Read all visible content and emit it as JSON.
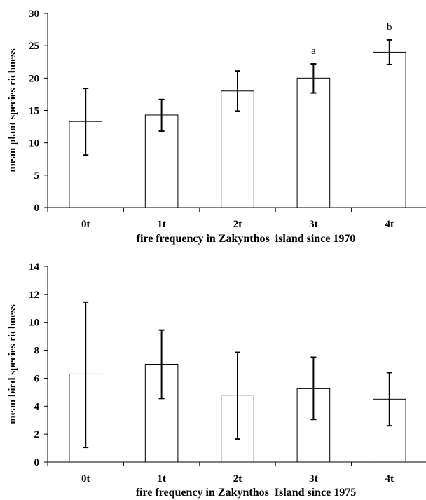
{
  "chart_data": [
    {
      "type": "bar",
      "categories": [
        "0t",
        "1t",
        "2t",
        "3t",
        "4t"
      ],
      "values": [
        13.3,
        14.3,
        18.0,
        20.0,
        24.0
      ],
      "error_low": [
        8.1,
        11.8,
        14.9,
        17.7,
        22.1
      ],
      "error_high": [
        18.4,
        16.7,
        21.1,
        22.2,
        25.9
      ],
      "annotations": [
        "",
        "",
        "",
        "a",
        "b"
      ],
      "xlabel": "fire frequency in Zakynthos  island since 1970",
      "ylabel": "mean plant species richness",
      "ylim": [
        0,
        30
      ],
      "yticks": [
        0,
        5,
        10,
        15,
        20,
        25,
        30
      ],
      "grid": false,
      "bar_color": "#ffffff",
      "edge_color": "#000000"
    },
    {
      "type": "bar",
      "categories": [
        "0t",
        "1t",
        "2t",
        "3t",
        "4t"
      ],
      "values": [
        6.3,
        7.0,
        4.75,
        5.25,
        4.5
      ],
      "error_low": [
        1.05,
        4.55,
        1.65,
        3.05,
        2.6
      ],
      "error_high": [
        11.45,
        9.45,
        7.85,
        7.5,
        6.4
      ],
      "annotations": [
        "",
        "",
        "",
        "",
        ""
      ],
      "xlabel": "fire frequency in Zakynthos  Island since 1975",
      "ylabel": "mean bird species richness",
      "ylim": [
        0,
        14
      ],
      "yticks": [
        0,
        2,
        4,
        6,
        8,
        10,
        12,
        14
      ],
      "grid": false,
      "bar_color": "#ffffff",
      "edge_color": "#000000"
    }
  ]
}
